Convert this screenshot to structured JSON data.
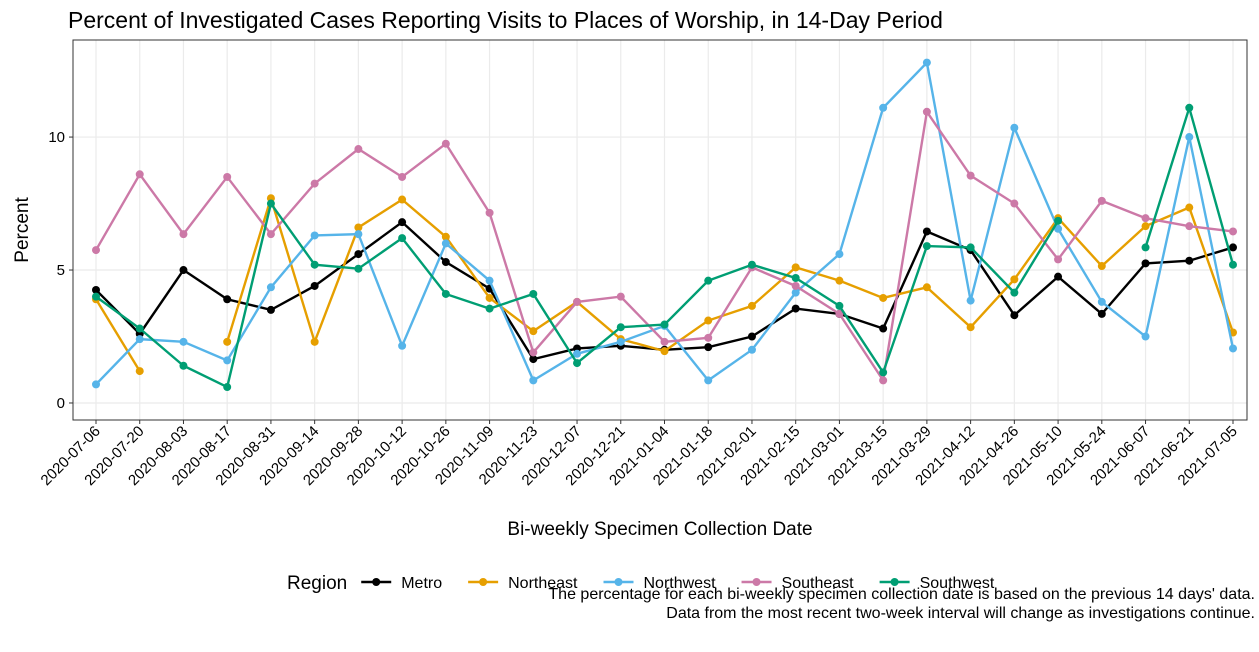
{
  "chart_data": {
    "type": "line",
    "title": "Percent of Investigated Cases Reporting Visits to Places of Worship, in 14-Day Period",
    "x_label": "Bi-weekly Specimen Collection Date",
    "y_label": "Percent",
    "legend_title": "Region",
    "legend_position": "bottom",
    "caption": [
      "The percentage for each bi-weekly specimen collection date is based on the previous 14 days' data.",
      "Data from the most recent two-week interval will change as investigations continue."
    ],
    "categories": [
      "2020-07-06",
      "2020-07-20",
      "2020-08-03",
      "2020-08-17",
      "2020-08-31",
      "2020-09-14",
      "2020-09-28",
      "2020-10-12",
      "2020-10-26",
      "2020-11-09",
      "2020-11-23",
      "2020-12-07",
      "2020-12-21",
      "2021-01-04",
      "2021-01-18",
      "2021-02-01",
      "2021-02-15",
      "2021-03-01",
      "2021-03-15",
      "2021-03-29",
      "2021-04-12",
      "2021-04-26",
      "2021-05-10",
      "2021-05-24",
      "2021-06-07",
      "2021-06-21",
      "2021-07-05"
    ],
    "ylim": [
      -0.64,
      13.65
    ],
    "yticks": [
      0,
      5,
      10
    ],
    "grid": true,
    "series": [
      {
        "name": "Metro",
        "color": "#000000",
        "values": [
          4.25,
          2.6,
          5.0,
          3.9,
          3.5,
          4.4,
          5.6,
          6.8,
          5.3,
          4.3,
          1.65,
          2.05,
          2.15,
          2.0,
          2.1,
          2.5,
          3.55,
          3.35,
          2.8,
          6.45,
          5.75,
          3.3,
          4.75,
          3.35,
          5.25,
          5.35,
          5.85
        ]
      },
      {
        "name": "Northeast",
        "color": "#E69F00",
        "values": [
          3.9,
          1.2,
          null,
          2.3,
          7.7,
          2.3,
          6.6,
          7.65,
          6.25,
          3.95,
          2.7,
          3.8,
          2.4,
          1.95,
          3.1,
          3.65,
          5.1,
          4.6,
          3.95,
          4.35,
          2.85,
          4.65,
          6.95,
          5.15,
          6.65,
          7.35,
          2.65
        ]
      },
      {
        "name": "Northwest",
        "color": "#56B4E9",
        "values": [
          0.7,
          2.4,
          2.3,
          1.6,
          4.35,
          6.3,
          6.35,
          2.15,
          6.0,
          4.6,
          0.85,
          1.85,
          2.3,
          2.9,
          0.85,
          2.0,
          4.15,
          5.6,
          11.1,
          12.8,
          3.85,
          10.35,
          6.55,
          3.8,
          2.5,
          10.0,
          2.05
        ]
      },
      {
        "name": "Southeast",
        "color": "#CC79A7",
        "values": [
          5.75,
          8.6,
          6.35,
          8.5,
          6.35,
          8.25,
          9.55,
          8.5,
          9.75,
          7.15,
          1.9,
          3.8,
          4.0,
          2.3,
          2.45,
          5.1,
          4.4,
          3.35,
          0.85,
          10.95,
          8.55,
          7.5,
          5.4,
          7.6,
          6.95,
          6.65,
          6.45
        ]
      },
      {
        "name": "Southwest",
        "color": "#009E73",
        "values": [
          4.0,
          2.8,
          1.4,
          0.6,
          7.5,
          5.2,
          5.05,
          6.2,
          4.1,
          3.55,
          4.1,
          1.5,
          2.85,
          2.95,
          4.6,
          5.2,
          4.7,
          3.65,
          1.15,
          5.9,
          5.85,
          4.15,
          6.85,
          null,
          5.85,
          11.1,
          5.2
        ]
      }
    ]
  }
}
